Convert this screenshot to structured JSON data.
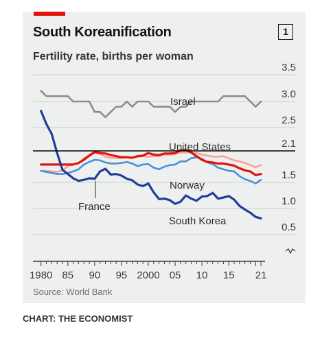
{
  "header": {
    "title": "South Koreanification",
    "badge": "1",
    "subtitle": "Fertility rate, births per woman"
  },
  "footer": {
    "source": "Source: World Bank",
    "credit": "CHART: THE ECONOMIST"
  },
  "colors": {
    "background": "#eef0f0",
    "accent_red": "#e3120b",
    "israel": "#8c8c8c",
    "united_states": "#e3120b",
    "norway": "#4a90d9",
    "france": "#f4a494",
    "south_korea": "#1f3d99",
    "gridline": "#c9cccc",
    "replacement_line": "#000000"
  },
  "chart_data": {
    "type": "line",
    "title": "South Koreanification",
    "subtitle": "Fertility rate, births per woman",
    "xlabel": "",
    "ylabel": "",
    "x_ticks": [
      "1980",
      "85",
      "90",
      "95",
      "2000",
      "05",
      "10",
      "15",
      "21"
    ],
    "y_ticks": [
      "3.5",
      "3.0",
      "2.5",
      "2.1",
      "1.5",
      "1.0",
      "0.5"
    ],
    "xlim": [
      1978.5,
      2021.5
    ],
    "ylim": [
      0.0,
      3.5
    ],
    "axis_break": true,
    "grid": "horizontal",
    "replacement_level": 2.1,
    "replacement_label": "United States",
    "x": [
      1980,
      1981,
      1982,
      1983,
      1984,
      1985,
      1986,
      1987,
      1988,
      1989,
      1990,
      1991,
      1992,
      1993,
      1994,
      1995,
      1996,
      1997,
      1998,
      1999,
      2000,
      2001,
      2002,
      2003,
      2004,
      2005,
      2006,
      2007,
      2008,
      2009,
      2010,
      2011,
      2012,
      2013,
      2014,
      2015,
      2016,
      2017,
      2018,
      2019,
      2020,
      2021
    ],
    "series": [
      {
        "name": "Israel",
        "color": "#8c8c8c",
        "values": [
          3.2,
          3.1,
          3.1,
          3.1,
          3.1,
          3.1,
          3.0,
          3.0,
          3.0,
          3.0,
          2.8,
          2.8,
          2.7,
          2.8,
          2.9,
          2.9,
          3.0,
          2.9,
          3.0,
          3.0,
          3.0,
          2.9,
          2.9,
          2.9,
          2.9,
          2.8,
          2.9,
          2.9,
          3.0,
          3.0,
          3.0,
          3.0,
          3.0,
          3.0,
          3.1,
          3.1,
          3.1,
          3.1,
          3.1,
          3.0,
          2.9,
          3.0
        ]
      },
      {
        "name": "United States",
        "color": "#e3120b",
        "values": [
          1.84,
          1.84,
          1.84,
          1.84,
          1.84,
          1.84,
          1.84,
          1.87,
          1.93,
          2.01,
          2.08,
          2.06,
          2.05,
          2.02,
          2.0,
          1.98,
          1.98,
          1.97,
          2.0,
          2.01,
          2.06,
          2.03,
          2.02,
          2.05,
          2.05,
          2.06,
          2.11,
          2.12,
          2.07,
          2.0,
          1.93,
          1.89,
          1.88,
          1.86,
          1.86,
          1.84,
          1.82,
          1.77,
          1.73,
          1.71,
          1.64,
          1.66
        ]
      },
      {
        "name": "Norway",
        "color": "#4a90d9",
        "values": [
          1.72,
          1.7,
          1.68,
          1.66,
          1.66,
          1.68,
          1.71,
          1.75,
          1.84,
          1.89,
          1.93,
          1.92,
          1.88,
          1.86,
          1.86,
          1.87,
          1.89,
          1.86,
          1.81,
          1.84,
          1.85,
          1.78,
          1.75,
          1.8,
          1.83,
          1.84,
          1.9,
          1.9,
          1.96,
          1.98,
          1.95,
          1.88,
          1.85,
          1.78,
          1.75,
          1.72,
          1.71,
          1.62,
          1.56,
          1.53,
          1.48,
          1.55
        ]
      },
      {
        "name": "France",
        "color": "#f4a494",
        "values": [
          1.72,
          1.72,
          1.71,
          1.7,
          1.73,
          1.81,
          1.84,
          1.86,
          1.96,
          2.02,
          2.06,
          2.04,
          1.99,
          1.97,
          1.96,
          1.96,
          1.98,
          1.97,
          1.99,
          2.0,
          1.99,
          2.0,
          2.0,
          2.03,
          2.03,
          2.04,
          2.07,
          2.07,
          2.07,
          2.06,
          2.03,
          2.01,
          1.99,
          1.99,
          2.0,
          1.96,
          1.92,
          1.9,
          1.87,
          1.83,
          1.79,
          1.83
        ]
      },
      {
        "name": "South Korea",
        "color": "#1f3d99",
        "values": [
          2.82,
          2.57,
          2.39,
          2.06,
          1.74,
          1.66,
          1.58,
          1.53,
          1.55,
          1.58,
          1.57,
          1.71,
          1.76,
          1.65,
          1.66,
          1.63,
          1.57,
          1.54,
          1.46,
          1.43,
          1.48,
          1.31,
          1.18,
          1.19,
          1.16,
          1.09,
          1.13,
          1.25,
          1.19,
          1.15,
          1.23,
          1.24,
          1.3,
          1.19,
          1.21,
          1.24,
          1.17,
          1.05,
          0.98,
          0.92,
          0.84,
          0.81
        ]
      }
    ],
    "annotations": [
      "Israel",
      "United States",
      "Norway",
      "France",
      "South Korea"
    ]
  }
}
